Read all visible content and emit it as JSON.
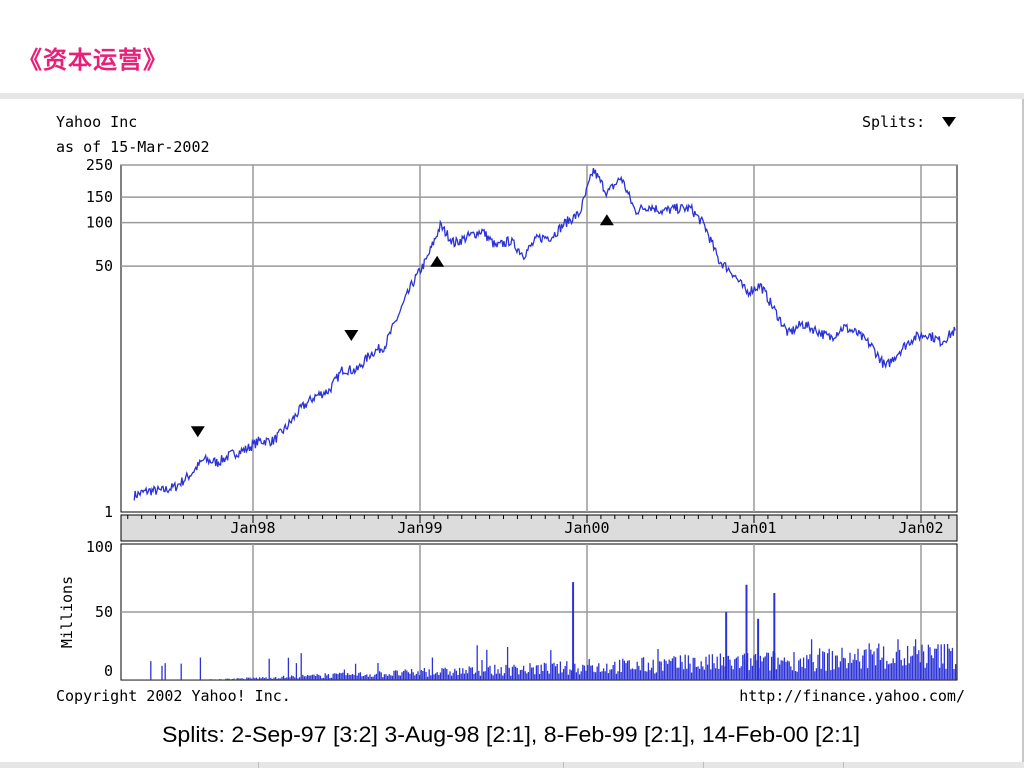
{
  "slide": {
    "title": "《资本运营》"
  },
  "chart_data": {
    "type": "line",
    "title": "Yahoo Inc",
    "subtitle": "as of 15-Mar-2002",
    "splits_label": "Splits:",
    "price_axis": {
      "scale": "log",
      "ylim": [
        1,
        250
      ],
      "ticks": [
        "250",
        "150",
        "100",
        "50",
        "1"
      ]
    },
    "x_ticks": [
      "Jan98",
      "Jan99",
      "Jan00",
      "Jan01",
      "Jan02"
    ],
    "grid": true,
    "series": [
      {
        "values_note": "",
        "x": [
          "1997-04",
          "1997-05",
          "1997-06",
          "1997-07",
          "1997-08",
          "1997-09",
          "1997-10",
          "1997-11",
          "1997-12",
          "1998-01",
          "1998-02",
          "1998-03",
          "1998-04",
          "1998-05",
          "1998-06",
          "1998-07",
          "1998-08",
          "1998-09",
          "1998-10",
          "1998-11",
          "1998-12",
          "1999-01",
          "1999-02",
          "1999-03",
          "1999-04",
          "1999-05",
          "1999-06",
          "1999-07",
          "1999-08",
          "1999-09",
          "1999-10",
          "1999-11",
          "1999-12",
          "2000-01",
          "2000-02",
          "2000-03",
          "2000-04",
          "2000-05",
          "2000-06",
          "2000-07",
          "2000-08",
          "2000-09",
          "2000-10",
          "2000-11",
          "2000-12",
          "2001-01",
          "2001-02",
          "2001-03",
          "2001-04",
          "2001-05",
          "2001-06",
          "2001-07",
          "2001-08",
          "2001-09",
          "2001-10",
          "2001-11",
          "2001-12",
          "2002-01",
          "2002-02",
          "2002-03"
        ],
        "y": [
          1.3,
          1.4,
          1.4,
          1.5,
          1.8,
          2.3,
          2.2,
          2.5,
          2.7,
          3.1,
          3.1,
          3.9,
          5.2,
          6.3,
          6.9,
          9.7,
          9.5,
          12.5,
          14,
          23,
          38,
          55,
          95,
          72,
          80,
          88,
          68,
          75,
          60,
          78,
          80,
          100,
          115,
          230,
          160,
          205,
          120,
          130,
          120,
          125,
          125,
          95,
          55,
          45,
          33,
          37,
          25,
          17,
          20,
          18,
          16,
          19,
          17,
          14,
          10,
          13,
          16,
          17,
          15,
          18
        ]
      }
    ],
    "split_markers": [
      {
        "date": "1997-09-02",
        "direction": "down"
      },
      {
        "date": "1998-08-03",
        "direction": "down"
      },
      {
        "date": "1999-02-08",
        "direction": "up"
      },
      {
        "date": "2000-02-14",
        "direction": "up"
      }
    ],
    "volume": {
      "ylabel": "Millions",
      "ylim": [
        0,
        100
      ],
      "ticks": [
        "100",
        "50",
        "0"
      ],
      "spikes": [
        {
          "date": "1999-12-01",
          "value": 72
        },
        {
          "date": "2000-12-15",
          "value": 70
        },
        {
          "date": "2001-02-15",
          "value": 64
        },
        {
          "date": "2000-11-01",
          "value": 50
        },
        {
          "date": "2001-01-10",
          "value": 45
        }
      ]
    },
    "copyright": "Copyright 2002 Yahoo! Inc.",
    "url": "http://finance.yahoo.com/"
  },
  "footer": {
    "splits_text": "Splits: 2-Sep-97 [3:2] 3-Aug-98 [2:1], 8-Feb-99 [2:1], 14-Feb-00 [2:1]"
  }
}
